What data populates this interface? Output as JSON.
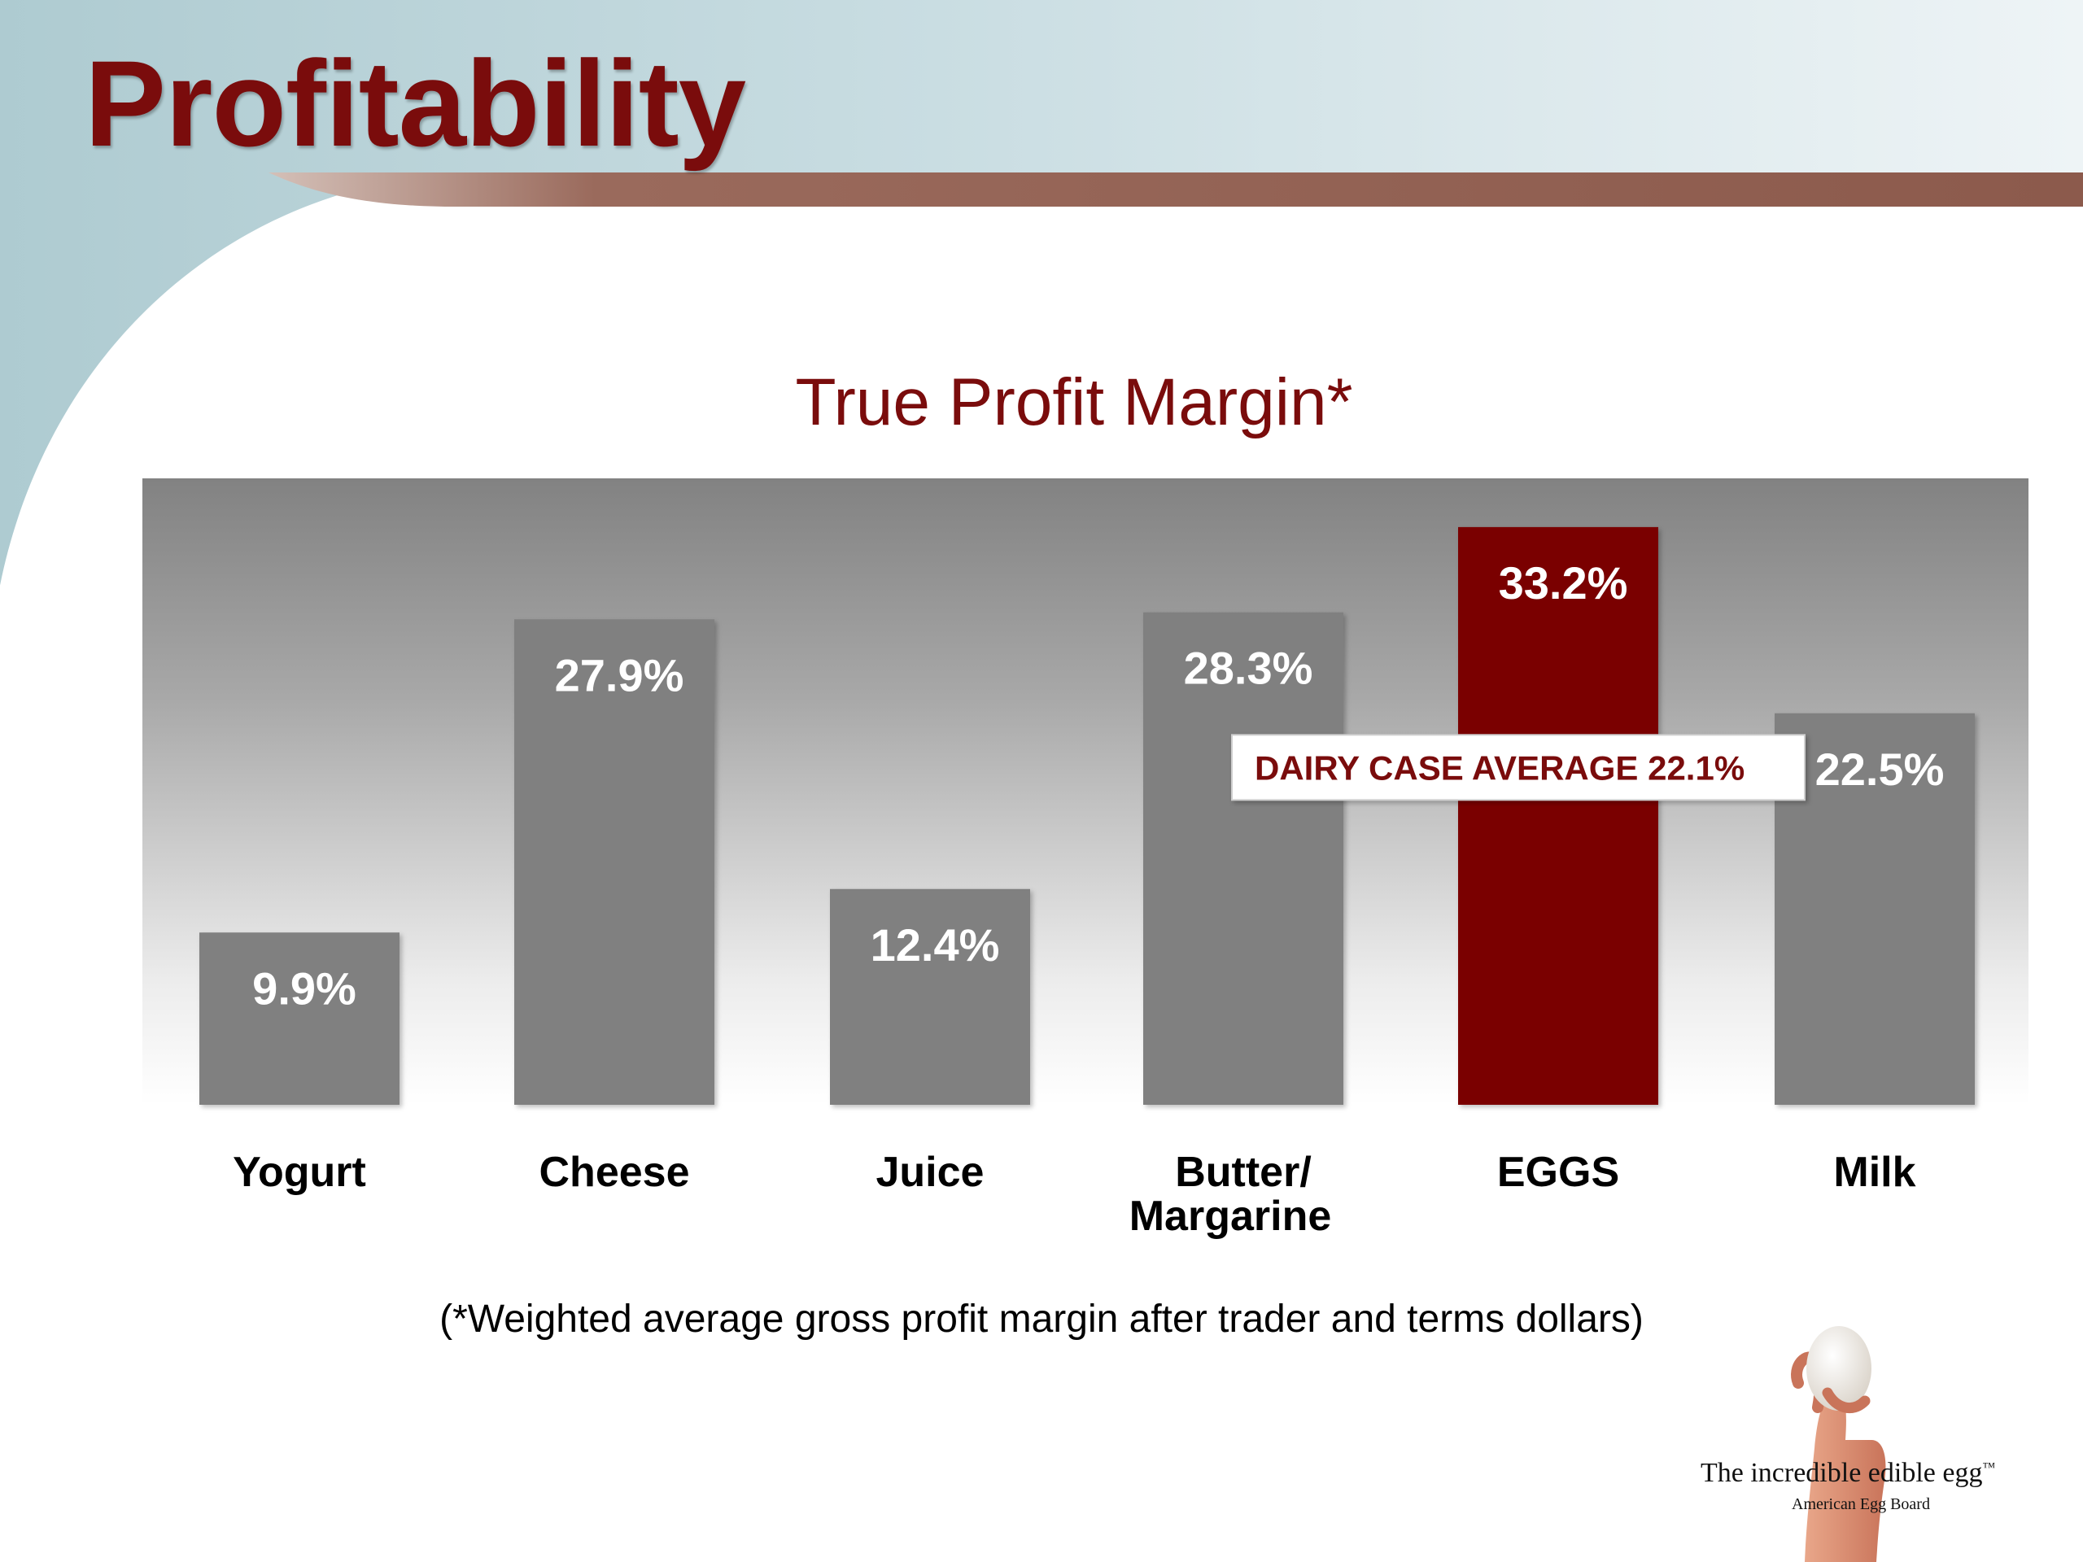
{
  "slide": {
    "title": "Profitability",
    "footnote": "(*Weighted average gross profit margin after trader and terms dollars)"
  },
  "colors": {
    "title": "#7a0c0c",
    "bar_default": "#808080",
    "bar_highlight": "#7a0000",
    "header_band": "#c9dde2",
    "accent_stripe": "#8c5a4c"
  },
  "chart_data": {
    "type": "bar",
    "title": "True Profit Margin*",
    "categories": [
      "Yogurt",
      "Cheese",
      "Juice",
      "Butter/\nMargarine",
      "EGGS",
      "Milk"
    ],
    "values": [
      9.9,
      27.9,
      12.4,
      28.3,
      33.2,
      22.5
    ],
    "value_labels": [
      "9.9%",
      "27.9%",
      "12.4%",
      "28.3%",
      "33.2%",
      "22.5%"
    ],
    "highlight": "EGGS",
    "unit": "%",
    "ylim": [
      0,
      36
    ],
    "grid": false,
    "legend": "none",
    "annotations": [
      {
        "text": "DAIRY CASE AVERAGE 22.1%",
        "value": 22.1
      }
    ]
  },
  "brand": {
    "name": "The incredible edible egg",
    "trademark": "™",
    "org": "American Egg Board",
    "icon": "hand-holding-egg-icon"
  }
}
